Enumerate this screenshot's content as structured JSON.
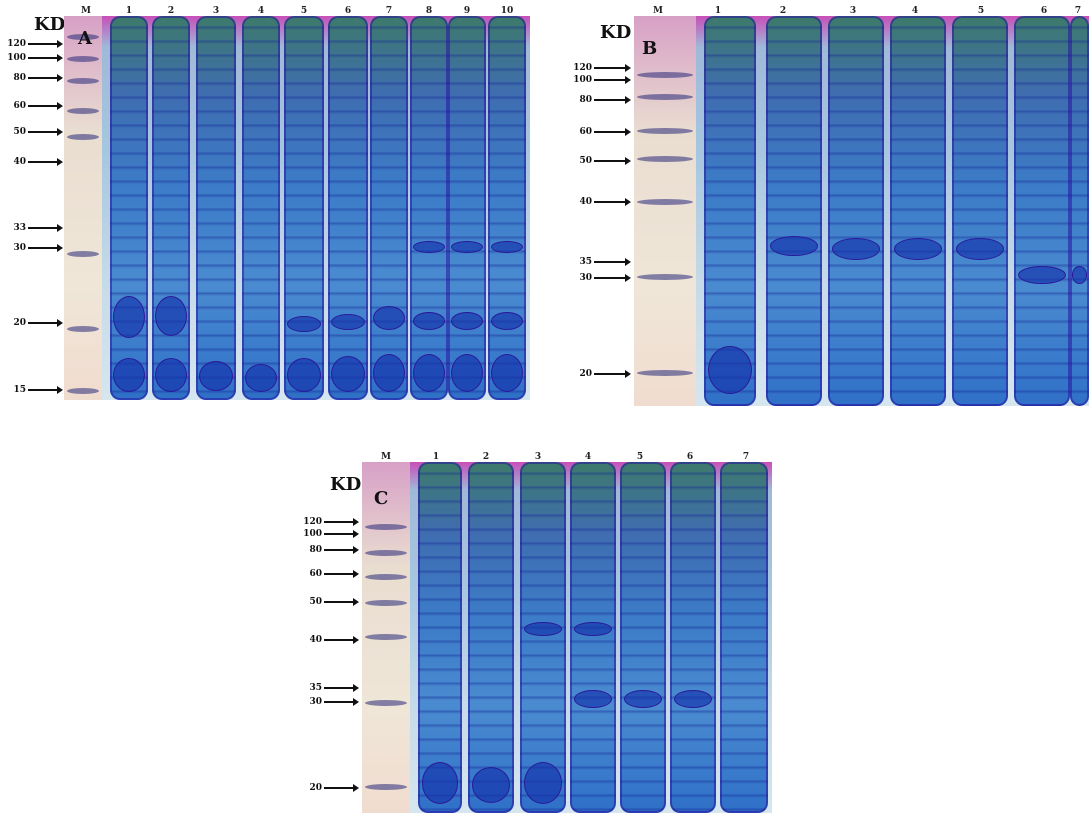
{
  "panels": [
    {
      "letter": "A",
      "kd": "KD",
      "marker_label": "M",
      "lanes": [
        "1",
        "2",
        "3",
        "4",
        "5",
        "6",
        "7",
        "8",
        "9",
        "10"
      ],
      "mw": [
        "120",
        "100",
        "80",
        "60",
        "50",
        "40",
        "33",
        "30",
        "20",
        "15"
      ]
    },
    {
      "letter": "B",
      "kd": "KD",
      "marker_label": "M",
      "lanes": [
        "1",
        "2",
        "3",
        "4",
        "5",
        "6",
        "7"
      ],
      "mw": [
        "120",
        "100",
        "80",
        "60",
        "50",
        "40",
        "35",
        "30",
        "20"
      ]
    },
    {
      "letter": "C",
      "kd": "KD",
      "marker_label": "M",
      "lanes": [
        "1",
        "2",
        "3",
        "4",
        "5",
        "6",
        "7"
      ],
      "mw": [
        "120",
        "100",
        "80",
        "60",
        "50",
        "40",
        "35",
        "30",
        "20"
      ]
    }
  ],
  "colors": {
    "lane": "#3c7cc8",
    "contour": "#2a1a9a",
    "background_top": "#c84fb8",
    "marker_lane": "#efe6d8"
  }
}
